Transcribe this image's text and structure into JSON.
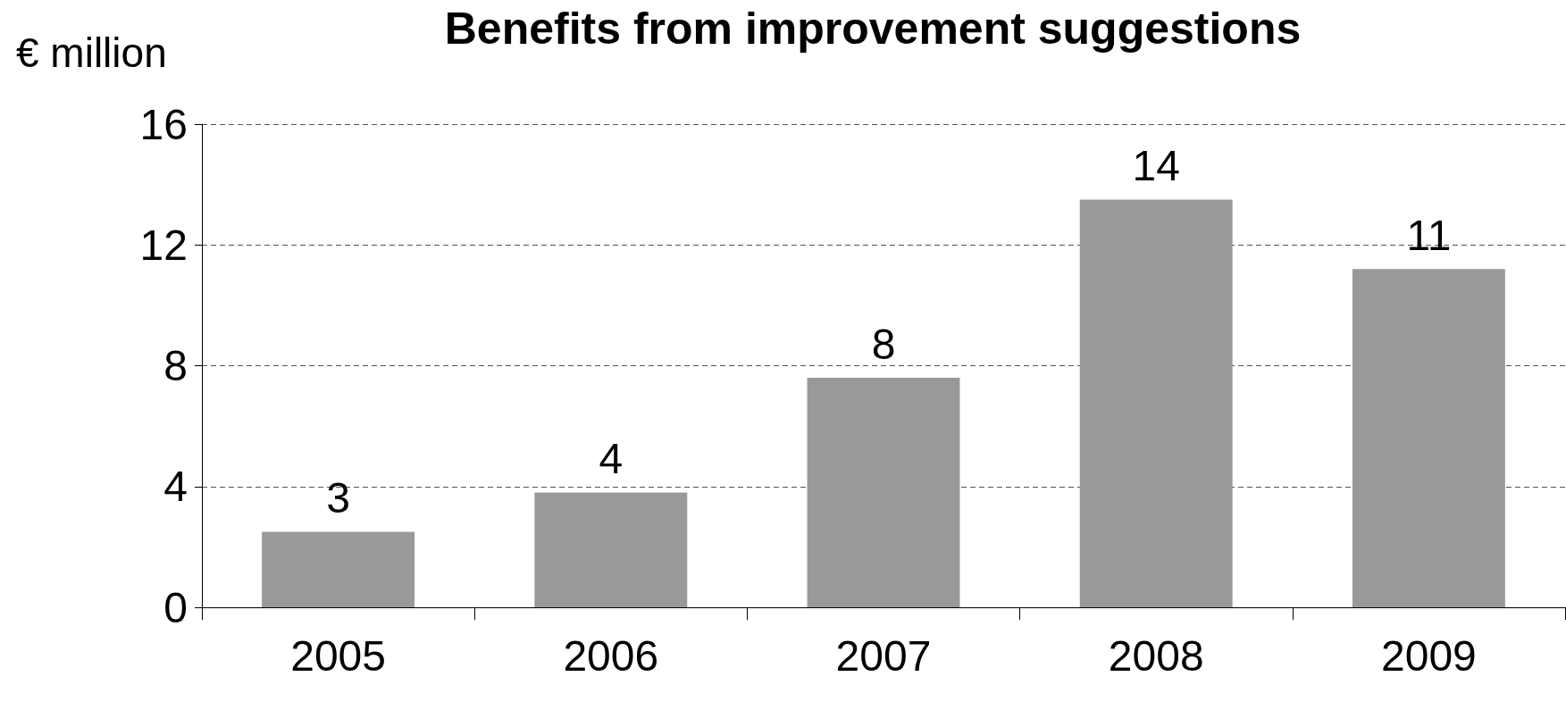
{
  "chart_data": {
    "type": "bar",
    "title": "Benefits from improvement suggestions",
    "ylabel": "€ million",
    "categories": [
      "2005",
      "2006",
      "2007",
      "2008",
      "2009"
    ],
    "values": [
      2.5,
      3.8,
      7.6,
      13.5,
      11.2
    ],
    "value_labels": [
      "3",
      "4",
      "8",
      "14",
      "11"
    ],
    "color": "#999999",
    "ylim": [
      0,
      16
    ],
    "yticks": [
      0,
      4,
      8,
      12,
      16
    ],
    "grid": "y"
  }
}
